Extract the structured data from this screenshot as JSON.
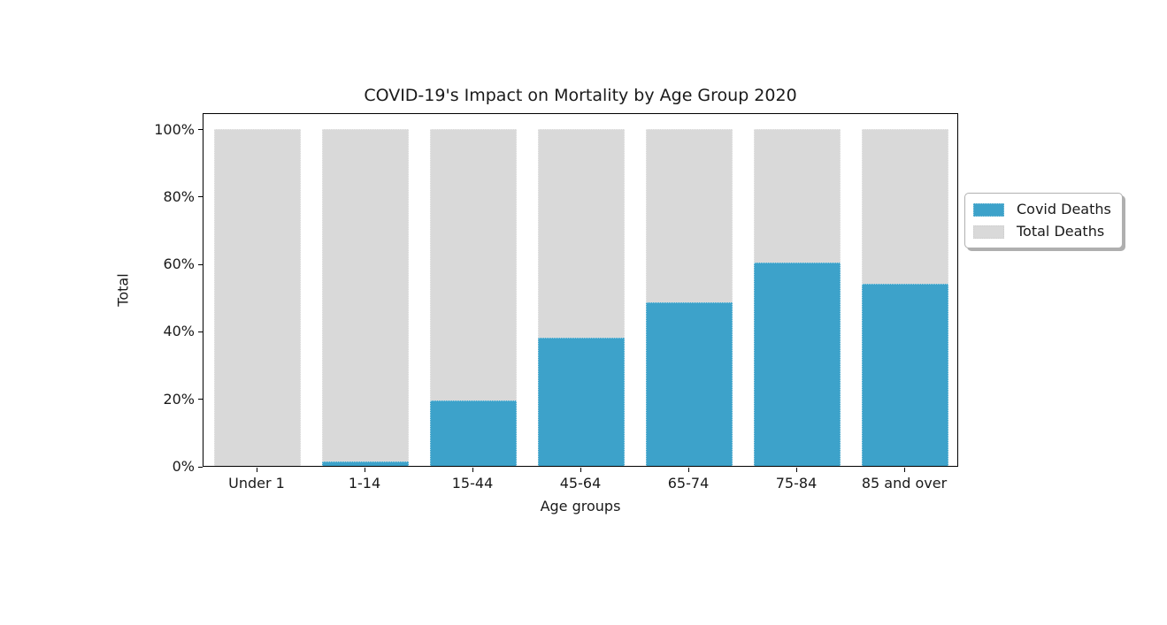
{
  "figure": {
    "background": "#ffffff"
  },
  "chart_data": {
    "type": "bar",
    "subtype": "overlay-percent-bars",
    "title": "COVID-19's Impact on Mortality by Age Group 2020",
    "xlabel": "Age groups",
    "ylabel": "Total",
    "categories": [
      "Under 1",
      "1-14",
      "15-44",
      "45-64",
      "65-74",
      "75-84",
      "85 and over"
    ],
    "series": [
      {
        "name": "Total Deaths",
        "color": "#d9d9d9",
        "values": [
          100,
          100,
          100,
          100,
          100,
          100,
          100
        ]
      },
      {
        "name": "Covid Deaths",
        "color": "#3da2ca",
        "values": [
          0,
          1.2,
          19.5,
          38,
          48.5,
          60.2,
          54
        ]
      }
    ],
    "y_ticks": [
      {
        "label": "0%",
        "value": 0
      },
      {
        "label": "20%",
        "value": 20
      },
      {
        "label": "40%",
        "value": 40
      },
      {
        "label": "60%",
        "value": 60
      },
      {
        "label": "80%",
        "value": 80
      },
      {
        "label": "100%",
        "value": 100
      }
    ],
    "ylim": [
      0,
      104.8
    ],
    "grid": false,
    "legend": {
      "position": "outside-right",
      "entries": [
        {
          "label": "Covid Deaths",
          "color": "#3da2ca"
        },
        {
          "label": "Total Deaths",
          "color": "#d9d9d9"
        }
      ]
    }
  }
}
